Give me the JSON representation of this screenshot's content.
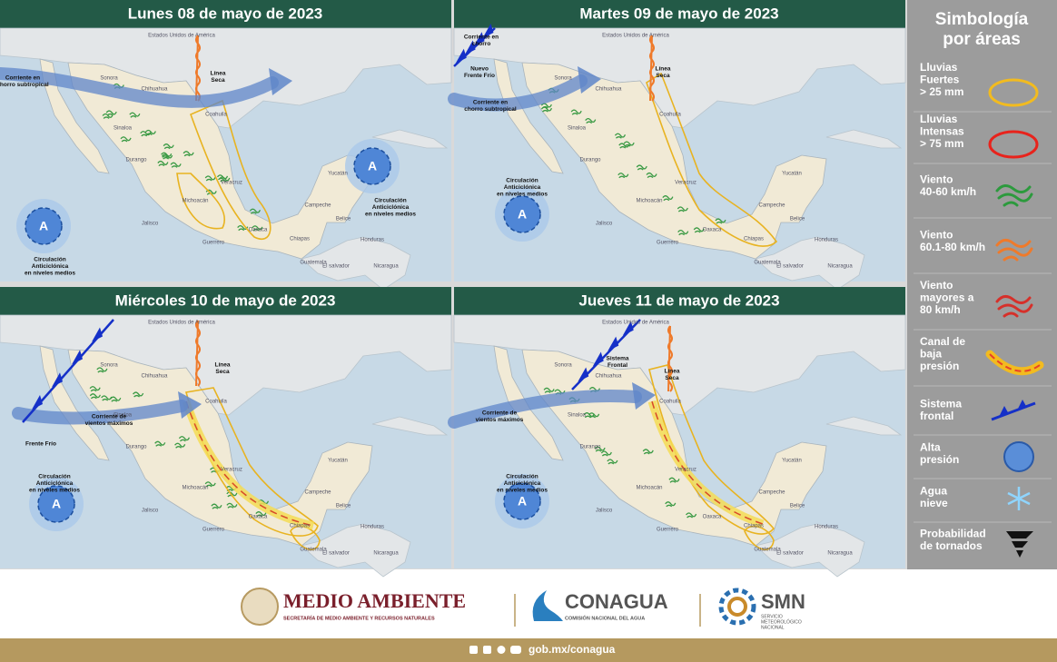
{
  "panels": [
    {
      "title": "Lunes 08 de mayo de 2023",
      "annotations": [
        [
          "Corriente en",
          "chorro subtropical"
        ],
        [
          "Línea",
          "Seca"
        ],
        [
          "Circulación",
          "Anticiclónica",
          "en niveles medios"
        ],
        [
          "Circulación",
          "Anticiclónica",
          "en niveles medios"
        ]
      ]
    },
    {
      "title": "Martes 09 de mayo de 2023",
      "annotations": [
        [
          "Corriente en",
          "chorro"
        ],
        [
          "Nuevo",
          "Frente Frío"
        ],
        [
          "Línea",
          "Seca"
        ],
        [
          "Corriente en",
          "chorro subtropical"
        ],
        [
          "Circulación",
          "Anticiclónica",
          "en niveles medios"
        ]
      ]
    },
    {
      "title": "Miércoles 10 de mayo de 2023",
      "annotations": [
        [
          "Frente Frío"
        ],
        [
          "Corriente de",
          "vientos máximos"
        ],
        [
          "Línea",
          "Seca"
        ],
        [
          "Circulación",
          "Anticiclónica",
          "en niveles medios"
        ]
      ]
    },
    {
      "title": "Jueves 11 de mayo de 2023",
      "annotations": [
        [
          "Sistema",
          "Frontal"
        ],
        [
          "Línea",
          "Seca"
        ],
        [
          "Corriente de",
          "vientos máximos"
        ],
        [
          "Circulación",
          "Anticiclónica",
          "en niveles medios"
        ]
      ]
    }
  ],
  "high_symbol": "A",
  "map_labels": [
    "Estados Unidos de América",
    "Sonora",
    "Chihuahua",
    "Coahuila",
    "Sinaloa",
    "Durango",
    "Jalisco",
    "Michoacán",
    "Guerrero",
    "Oaxaca",
    "Veracruz",
    "Chiapas",
    "Campeche",
    "Yucatán",
    "Belice",
    "Guatemala",
    "Honduras",
    "El salvador",
    "Nicaragua"
  ],
  "legend": {
    "title": [
      "Simbología",
      "por áreas"
    ],
    "items": [
      [
        "Lluvias",
        "Fuertes",
        "> 25 mm"
      ],
      [
        "Lluvias",
        "Intensas",
        "> 75 mm"
      ],
      [
        "Viento",
        "40-60 km/h"
      ],
      [
        "Viento",
        "60.1-80 km/h"
      ],
      [
        "Viento",
        "mayores a",
        "80 km/h"
      ],
      [
        "Canal de",
        "baja",
        "presión"
      ],
      [
        "Sistema",
        "frontal"
      ],
      [
        "Alta",
        "presión"
      ],
      [
        "Agua",
        "nieve"
      ],
      [
        "Probabilidad",
        "de tornados"
      ]
    ]
  },
  "footer": {
    "semarnat": "MEDIO AMBIENTE",
    "semarnat_sub": "SECRETARÍA DE MEDIO AMBIENTE Y RECURSOS NATURALES",
    "conagua": "CONAGUA",
    "conagua_sub": "COMISIÓN NACIONAL DEL AGUA",
    "smn": "SMN",
    "smn_sub": [
      "SERVICIO",
      "METEOROLÓGICO",
      "NACIONAL"
    ],
    "url": "gob.mx/conagua"
  }
}
